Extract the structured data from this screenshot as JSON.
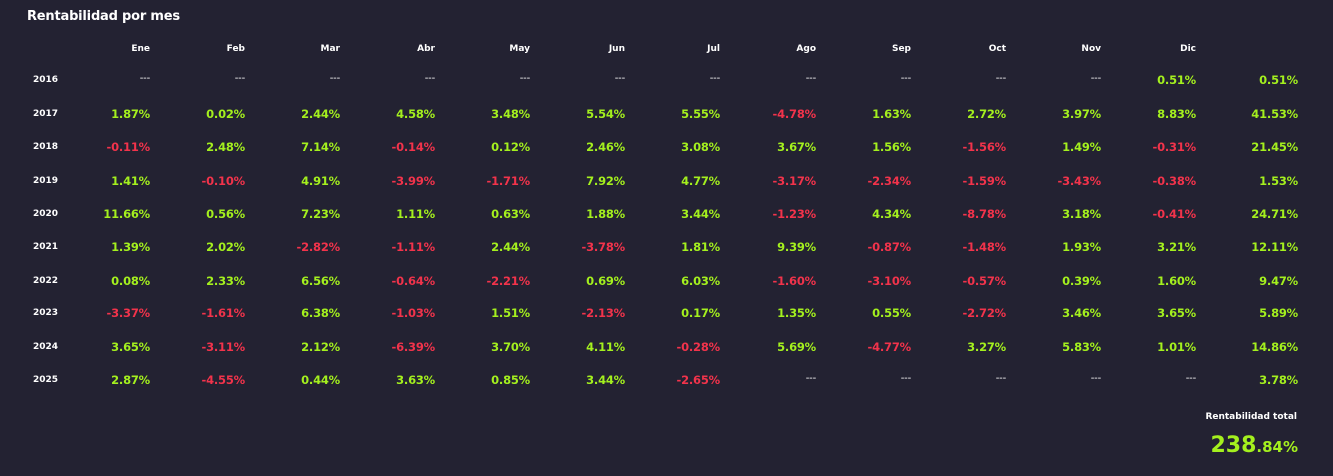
{
  "panel": {
    "title": "Rentabilidad por mes",
    "months": [
      "Ene",
      "Feb",
      "Mar",
      "Abr",
      "May",
      "Jun",
      "Jul",
      "Ago",
      "Sep",
      "Oct",
      "Nov",
      "Dic"
    ],
    "rows": [
      {
        "year": "2016",
        "values": [
          "---",
          "---",
          "---",
          "---",
          "---",
          "---",
          "---",
          "---",
          "---",
          "---",
          "---",
          "0.51%"
        ],
        "total": "0.51%"
      },
      {
        "year": "2017",
        "values": [
          "1.87%",
          "0.02%",
          "2.44%",
          "4.58%",
          "3.48%",
          "5.54%",
          "5.55%",
          "-4.78%",
          "1.63%",
          "2.72%",
          "3.97%",
          "8.83%"
        ],
        "total": "41.53%"
      },
      {
        "year": "2018",
        "values": [
          "-0.11%",
          "2.48%",
          "7.14%",
          "-0.14%",
          "0.12%",
          "2.46%",
          "3.08%",
          "3.67%",
          "1.56%",
          "-1.56%",
          "1.49%",
          "-0.31%"
        ],
        "total": "21.45%"
      },
      {
        "year": "2019",
        "values": [
          "1.41%",
          "-0.10%",
          "4.91%",
          "-3.99%",
          "-1.71%",
          "7.92%",
          "4.77%",
          "-3.17%",
          "-2.34%",
          "-1.59%",
          "-3.43%",
          "-0.38%"
        ],
        "total": "1.53%"
      },
      {
        "year": "2020",
        "values": [
          "11.66%",
          "0.56%",
          "7.23%",
          "1.11%",
          "0.63%",
          "1.88%",
          "3.44%",
          "-1.23%",
          "4.34%",
          "-8.78%",
          "3.18%",
          "-0.41%"
        ],
        "total": "24.71%"
      },
      {
        "year": "2021",
        "values": [
          "1.39%",
          "2.02%",
          "-2.82%",
          "-1.11%",
          "2.44%",
          "-3.78%",
          "1.81%",
          "9.39%",
          "-0.87%",
          "-1.48%",
          "1.93%",
          "3.21%"
        ],
        "total": "12.11%"
      },
      {
        "year": "2022",
        "values": [
          "0.08%",
          "2.33%",
          "6.56%",
          "-0.64%",
          "-2.21%",
          "0.69%",
          "6.03%",
          "-1.60%",
          "-3.10%",
          "-0.57%",
          "0.39%",
          "1.60%"
        ],
        "total": "9.47%"
      },
      {
        "year": "2023",
        "values": [
          "-3.37%",
          "-1.61%",
          "6.38%",
          "-1.03%",
          "1.51%",
          "-2.13%",
          "0.17%",
          "1.35%",
          "0.55%",
          "-2.72%",
          "3.46%",
          "3.65%"
        ],
        "total": "5.89%"
      },
      {
        "year": "2024",
        "values": [
          "3.65%",
          "-3.11%",
          "2.12%",
          "-6.39%",
          "3.70%",
          "4.11%",
          "-0.28%",
          "5.69%",
          "-4.77%",
          "3.27%",
          "5.83%",
          "1.01%"
        ],
        "total": "14.86%"
      },
      {
        "year": "2025",
        "values": [
          "2.87%",
          "-4.55%",
          "0.44%",
          "3.63%",
          "0.85%",
          "3.44%",
          "-2.65%",
          "---",
          "---",
          "---",
          "---",
          "---"
        ],
        "total": "3.78%"
      }
    ],
    "total_label": "Rentabilidad total",
    "total_int": "238",
    "total_dec": ".84%"
  },
  "colors": {
    "background": "#232232",
    "positive": "#a4f01e",
    "negative": "#f2334b"
  }
}
